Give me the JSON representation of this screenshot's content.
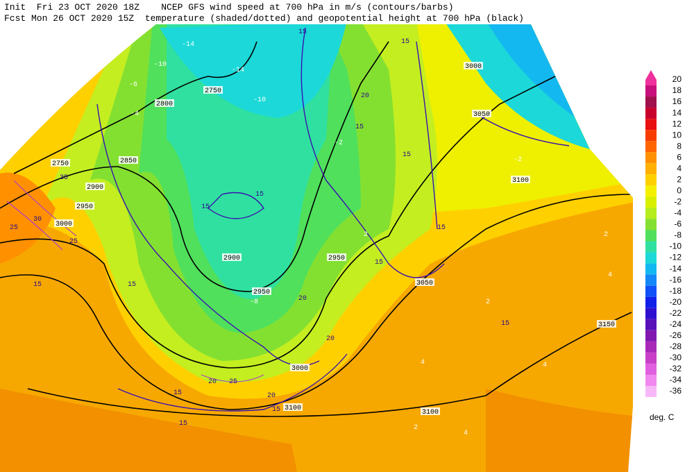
{
  "header": {
    "line1": "Init  Fri 23 OCT 2020 18Z    NCEP GFS wind speed at 700 hPa in m/s (contours/barbs)",
    "line2": "Fcst Mon 26 OCT 2020 15Z  temperature (shaded/dotted) and geopotential height at 700 hPa (black)"
  },
  "colorbar": {
    "unit": "deg. C",
    "levels": [
      {
        "label": "20",
        "color": "#f0309c"
      },
      {
        "label": "18",
        "color": "#c8107c"
      },
      {
        "label": "16",
        "color": "#a0104c"
      },
      {
        "label": "14",
        "color": "#c8002c"
      },
      {
        "label": "12",
        "color": "#e81010"
      },
      {
        "label": "10",
        "color": "#f83c00"
      },
      {
        "label": "8",
        "color": "#ff6400"
      },
      {
        "label": "6",
        "color": "#ff9000"
      },
      {
        "label": "4",
        "color": "#ffb000"
      },
      {
        "label": "2",
        "color": "#ffd000"
      },
      {
        "label": "0",
        "color": "#f4f000"
      },
      {
        "label": "-2",
        "color": "#d8f000"
      },
      {
        "label": "-4",
        "color": "#b4ec1c"
      },
      {
        "label": "-6",
        "color": "#84e030"
      },
      {
        "label": "-8",
        "color": "#50e05c"
      },
      {
        "label": "-10",
        "color": "#30e0a0"
      },
      {
        "label": "-12",
        "color": "#1cd8d8"
      },
      {
        "label": "-14",
        "color": "#14b8f0"
      },
      {
        "label": "-16",
        "color": "#1488f8"
      },
      {
        "label": "-18",
        "color": "#1050f8"
      },
      {
        "label": "-20",
        "color": "#1020e8"
      },
      {
        "label": "-22",
        "color": "#3010d0"
      },
      {
        "label": "-24",
        "color": "#5810b8"
      },
      {
        "label": "-26",
        "color": "#8018b0"
      },
      {
        "label": "-28",
        "color": "#a828b8"
      },
      {
        "label": "-30",
        "color": "#c840c8"
      },
      {
        "label": "-32",
        "color": "#e060e0"
      },
      {
        "label": "-34",
        "color": "#f088f0"
      },
      {
        "label": "-36",
        "color": "#f8b8f8"
      }
    ]
  },
  "map": {
    "height_labels": [
      "2750",
      "2800",
      "2850",
      "3000",
      "3050",
      "3100",
      "2750",
      "2900",
      "2950",
      "3000",
      "2900",
      "2950",
      "2950",
      "3050",
      "3150",
      "3100",
      "3100",
      "3000"
    ],
    "wind_labels": [
      "15",
      "15",
      "20",
      "15",
      "15",
      "15",
      "15",
      "15",
      "20",
      "25",
      "25",
      "30",
      "35",
      "15",
      "15",
      "20",
      "15",
      "20",
      "25",
      "20",
      "15",
      "15",
      "15",
      "15"
    ],
    "temp_labels": [
      "-14",
      "-10",
      "-14",
      "-6",
      "-4",
      "-10",
      "-8",
      "-2",
      "-2",
      "2",
      "2",
      "4",
      "4",
      "2",
      "4",
      "2",
      "4"
    ]
  }
}
